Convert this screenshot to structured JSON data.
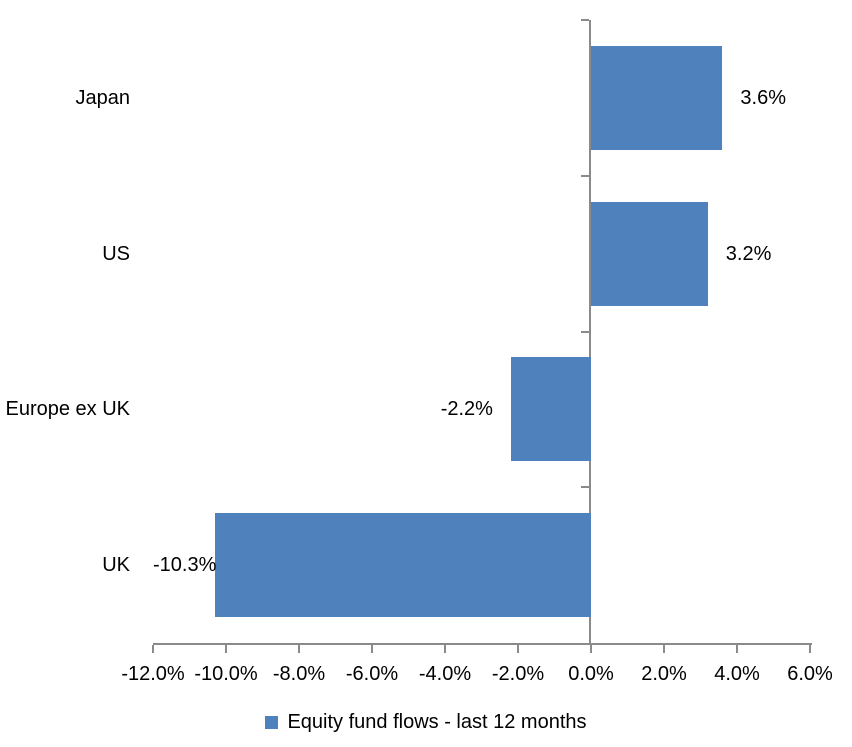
{
  "chart_data": {
    "type": "bar",
    "orientation": "horizontal",
    "categories": [
      "Japan",
      "US",
      "Europe ex UK",
      "UK"
    ],
    "values": [
      3.6,
      3.2,
      -2.2,
      -10.3
    ],
    "data_labels": [
      "3.6%",
      "3.2%",
      "-2.2%",
      "-10.3%"
    ],
    "x_tick_values": [
      -12,
      -10,
      -8,
      -6,
      -4,
      -2,
      0,
      2,
      4,
      6
    ],
    "x_tick_labels": [
      "-12.0%",
      "-10.0%",
      "-8.0%",
      "-6.0%",
      "-4.0%",
      "-2.0%",
      "0.0%",
      "2.0%",
      "4.0%",
      "6.0%"
    ],
    "xlim": [
      -12,
      6
    ],
    "grid": false,
    "legend_position": "bottom",
    "legend_label": "Equity fund flows - last 12 months",
    "bar_color": "#4F81BD",
    "axis_color": "#8A8A8A",
    "text_color": "#000000",
    "background_color": "#FFFFFF"
  }
}
